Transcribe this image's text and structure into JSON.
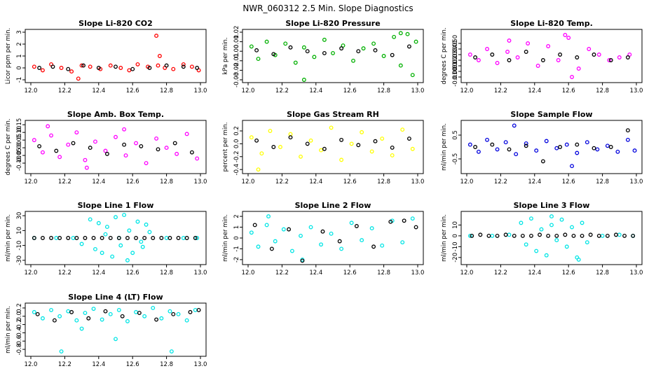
{
  "figure": {
    "title": "NWR_060312  2.5 Min. Slope Diagnostics"
  },
  "chart_data": [
    {
      "type": "scatter",
      "title": "Slope Li-820 CO2",
      "xlabel": "",
      "ylabel": "Licor ppm per min.",
      "xlim": [
        12.0,
        13.0
      ],
      "ylim": [
        -1.0,
        3.0
      ],
      "xticks": [
        "12.0",
        "12.2",
        "12.4",
        "12.6",
        "12.8",
        "13.0"
      ],
      "yticks": [
        "-1",
        "0",
        "1",
        "2",
        "3"
      ],
      "point_color": "#ff0000",
      "highlight_color": "#000000",
      "series": [
        {
          "x": [
            12.02,
            12.07,
            12.12,
            12.18,
            12.24,
            12.3,
            12.35,
            12.41,
            12.47,
            12.53,
            12.58,
            12.63,
            12.69,
            12.75,
            12.79,
            12.84,
            12.9,
            12.95,
            12.99,
            12.28,
            12.74,
            12.76
          ],
          "y": [
            0.1,
            -0.2,
            0.3,
            0.0,
            -0.3,
            0.2,
            0.1,
            -0.1,
            0.2,
            0.0,
            -0.2,
            0.3,
            0.1,
            0.2,
            0.0,
            -0.1,
            0.3,
            0.1,
            -0.2,
            -0.9,
            2.7,
            1.0
          ]
        },
        {
          "x": [
            12.05,
            12.13,
            12.22,
            12.31,
            12.4,
            12.5,
            12.6,
            12.7,
            12.8,
            12.9,
            12.98
          ],
          "y": [
            0.0,
            0.1,
            -0.1,
            0.2,
            0.0,
            0.1,
            -0.1,
            0.0,
            0.2,
            0.1,
            0.0
          ]
        }
      ]
    },
    {
      "type": "scatter",
      "title": "Slope Li-820 Pressure",
      "xlabel": "",
      "ylabel": "kPa per min.",
      "xlim": [
        12.0,
        13.0
      ],
      "ylim": [
        -0.03,
        0.02
      ],
      "xticks": [
        "12.0",
        "12.2",
        "12.4",
        "12.6",
        "12.8",
        "13.0"
      ],
      "yticks": [
        "-0.03",
        "-0.02",
        "-0.01",
        "0.00",
        "0.01",
        "0.02"
      ],
      "point_color": "#00b000",
      "highlight_color": "#000000",
      "series": [
        {
          "x": [
            12.02,
            12.06,
            12.11,
            12.16,
            12.22,
            12.28,
            12.33,
            12.39,
            12.45,
            12.5,
            12.56,
            12.62,
            12.68,
            12.74,
            12.8,
            12.86,
            12.9,
            12.94,
            12.97,
            12.99,
            12.33,
            12.9
          ],
          "y": [
            0.005,
            -0.008,
            0.01,
            -0.004,
            0.008,
            -0.012,
            0.004,
            -0.006,
            0.012,
            -0.002,
            0.006,
            -0.01,
            0.003,
            0.008,
            -0.005,
            0.015,
            -0.015,
            0.018,
            -0.025,
            0.01,
            -0.03,
            0.019
          ]
        },
        {
          "x": [
            12.05,
            12.15,
            12.25,
            12.35,
            12.45,
            12.55,
            12.65,
            12.75,
            12.85,
            12.95
          ],
          "y": [
            0.001,
            -0.003,
            0.004,
            0.0,
            -0.002,
            0.003,
            0.0,
            0.001,
            -0.004,
            0.005
          ]
        }
      ]
    },
    {
      "type": "scatter",
      "title": "Slope Li-820 Temp.",
      "xlabel": "",
      "ylabel": "degrees C per min.",
      "xlim": [
        12.0,
        13.0
      ],
      "ylim": [
        -0.015,
        0.07
      ],
      "xticks": [
        "12.0",
        "12.2",
        "12.4",
        "12.6",
        "12.8",
        "13.0"
      ],
      "yticks": [
        "-0.010",
        "0.000",
        "0.010",
        "0.020",
        "0.030",
        "0.040",
        "0.050"
      ],
      "point_color": "#ff00ff",
      "highlight_color": "#000000",
      "series": [
        {
          "x": [
            12.02,
            12.07,
            12.12,
            12.18,
            12.24,
            12.3,
            12.36,
            12.42,
            12.48,
            12.54,
            12.6,
            12.66,
            12.72,
            12.78,
            12.84,
            12.9,
            12.96,
            12.62,
            12.25,
            12.58
          ],
          "y": [
            0.03,
            0.02,
            0.04,
            0.015,
            0.035,
            0.025,
            0.05,
            0.01,
            0.045,
            0.02,
            0.06,
            0.005,
            0.04,
            0.03,
            0.02,
            0.025,
            0.03,
            -0.01,
            0.055,
            0.065
          ]
        },
        {
          "x": [
            12.05,
            12.15,
            12.25,
            12.35,
            12.45,
            12.55,
            12.65,
            12.75,
            12.85,
            12.95
          ],
          "y": [
            0.025,
            0.03,
            0.02,
            0.035,
            0.02,
            0.03,
            0.025,
            0.03,
            0.02,
            0.025
          ]
        }
      ]
    },
    {
      "type": "scatter",
      "title": "Slope Amb. Box Temp.",
      "xlabel": "",
      "ylabel": "degrees C per min.",
      "xlim": [
        12.0,
        13.0
      ],
      "ylim": [
        -0.15,
        0.16
      ],
      "xticks": [
        "12.0",
        "12.2",
        "12.4",
        "12.6",
        "12.8",
        "13.0"
      ],
      "yticks": [
        "-0.10",
        "-0.05",
        "0.00",
        "0.05",
        "0.10",
        "0.15"
      ],
      "point_color": "#ff00ff",
      "highlight_color": "#000000",
      "series": [
        {
          "x": [
            12.02,
            12.07,
            12.12,
            12.17,
            12.22,
            12.27,
            12.32,
            12.38,
            12.44,
            12.5,
            12.56,
            12.62,
            12.68,
            12.74,
            12.8,
            12.86,
            12.92,
            12.98,
            12.1,
            12.33,
            12.55
          ],
          "y": [
            0.05,
            -0.03,
            0.08,
            -0.06,
            0.02,
            0.1,
            -0.08,
            0.04,
            -0.02,
            0.07,
            -0.05,
            0.03,
            -0.1,
            0.06,
            0.0,
            -0.04,
            0.09,
            -0.07,
            0.14,
            -0.13,
            0.12
          ]
        },
        {
          "x": [
            12.05,
            12.15,
            12.25,
            12.35,
            12.45,
            12.55,
            12.65,
            12.75,
            12.85,
            12.95
          ],
          "y": [
            0.01,
            -0.02,
            0.03,
            0.0,
            -0.04,
            0.02,
            0.01,
            -0.01,
            0.03,
            -0.03
          ]
        }
      ]
    },
    {
      "type": "scatter",
      "title": "Slope Gas Stream RH",
      "xlabel": "",
      "ylabel": "percent per min.",
      "xlim": [
        12.0,
        13.0
      ],
      "ylim": [
        -0.42,
        0.32
      ],
      "xticks": [
        "12.0",
        "12.2",
        "12.4",
        "12.6",
        "12.8",
        "13.0"
      ],
      "yticks": [
        "-0.4",
        "-0.2",
        "0.0",
        "0.2"
      ],
      "point_color": "#ffff00",
      "highlight_color": "#000000",
      "series": [
        {
          "x": [
            12.02,
            12.08,
            12.13,
            12.19,
            12.25,
            12.31,
            12.37,
            12.43,
            12.49,
            12.55,
            12.61,
            12.67,
            12.73,
            12.79,
            12.85,
            12.91,
            12.97,
            12.06
          ],
          "y": [
            0.1,
            -0.15,
            0.2,
            -0.05,
            0.15,
            -0.2,
            0.05,
            -0.1,
            0.25,
            -0.25,
            0.0,
            0.18,
            -0.12,
            0.08,
            -0.18,
            0.22,
            -0.08,
            -0.4
          ]
        },
        {
          "x": [
            12.05,
            12.15,
            12.25,
            12.35,
            12.45,
            12.55,
            12.65,
            12.75,
            12.85,
            12.95
          ],
          "y": [
            0.05,
            -0.05,
            0.1,
            0.0,
            -0.08,
            0.06,
            -0.02,
            0.04,
            -0.06,
            0.08
          ]
        }
      ]
    },
    {
      "type": "scatter",
      "title": "Slope Sample Flow",
      "xlabel": "",
      "ylabel": "ml/min per min.",
      "xlim": [
        12.0,
        13.0
      ],
      "ylim": [
        -1.0,
        1.0
      ],
      "xticks": [
        "12.0",
        "12.2",
        "12.4",
        "12.6",
        "12.8",
        "13.0"
      ],
      "yticks": [
        "-0.5",
        "0.5"
      ],
      "point_color": "#0000dd",
      "highlight_color": "#000000",
      "series": [
        {
          "x": [
            12.02,
            12.07,
            12.12,
            12.18,
            12.23,
            12.29,
            12.35,
            12.41,
            12.47,
            12.53,
            12.59,
            12.65,
            12.71,
            12.77,
            12.83,
            12.89,
            12.95,
            12.99,
            12.28,
            12.62
          ],
          "y": [
            0.1,
            -0.2,
            0.3,
            -0.1,
            0.2,
            -0.3,
            0.15,
            -0.15,
            0.25,
            -0.05,
            0.1,
            -0.25,
            0.2,
            -0.1,
            0.05,
            -0.2,
            0.3,
            -0.15,
            0.9,
            -0.8
          ]
        },
        {
          "x": [
            12.05,
            12.15,
            12.25,
            12.35,
            12.45,
            12.55,
            12.65,
            12.75,
            12.85,
            12.95
          ],
          "y": [
            0.0,
            0.1,
            -0.1,
            0.05,
            -0.6,
            0.0,
            0.1,
            -0.05,
            0.0,
            0.7
          ]
        }
      ]
    },
    {
      "type": "scatter",
      "title": "Slope Line 1 Flow",
      "xlabel": "",
      "ylabel": "ml/min per min.",
      "xlim": [
        12.0,
        13.0
      ],
      "ylim": [
        -32,
        32
      ],
      "xticks": [
        "12.0",
        "12.2",
        "12.4",
        "12.6",
        "12.8",
        "13.0"
      ],
      "yticks": [
        "-30",
        "-10",
        "10",
        "30"
      ],
      "point_color": "#00e5e5",
      "highlight_color": "#000000",
      "series": [
        {
          "x": [
            12.35,
            12.38,
            12.4,
            12.42,
            12.45,
            12.48,
            12.5,
            12.53,
            12.55,
            12.58,
            12.6,
            12.63,
            12.65,
            12.68,
            12.7,
            12.3,
            12.57,
            12.44,
            12.66,
            12.02,
            12.15,
            12.25,
            12.52,
            12.8,
            12.9,
            12.98
          ],
          "y": [
            25,
            -15,
            20,
            -20,
            15,
            -25,
            28,
            -10,
            31,
            10,
            -20,
            22,
            -5,
            18,
            8,
            -8,
            -30,
            5,
            -12,
            0,
            0,
            0,
            0,
            0,
            0,
            0
          ]
        },
        {
          "x": [
            12.02,
            12.07,
            12.12,
            12.17,
            12.22,
            12.27,
            12.32,
            12.37,
            12.42,
            12.47,
            12.52,
            12.57,
            12.62,
            12.67,
            12.72,
            12.77,
            12.82,
            12.87,
            12.92,
            12.97
          ],
          "y": [
            0,
            0,
            0,
            0,
            0,
            0,
            0,
            0,
            0,
            0,
            0,
            0,
            0,
            0,
            0,
            0,
            0,
            0,
            0,
            0
          ]
        }
      ]
    },
    {
      "type": "scatter",
      "title": "Slope Line 2 Flow",
      "xlabel": "",
      "ylabel": "ml/min per min.",
      "xlim": [
        12.0,
        13.0
      ],
      "ylim": [
        -2.2,
        2.2
      ],
      "xticks": [
        "12.0",
        "12.2",
        "12.4",
        "12.6",
        "12.8",
        "13.0"
      ],
      "yticks": [
        "-2",
        "-1",
        "0",
        "1",
        "2"
      ],
      "point_color": "#00e5e5",
      "highlight_color": "#000000",
      "series": [
        {
          "x": [
            12.02,
            12.06,
            12.11,
            12.16,
            12.21,
            12.26,
            12.31,
            12.37,
            12.43,
            12.49,
            12.55,
            12.61,
            12.67,
            12.73,
            12.79,
            12.85,
            12.91,
            12.97,
            12.12,
            12.32
          ],
          "y": [
            0.5,
            -0.8,
            1.2,
            -0.3,
            0.8,
            -1.2,
            0.2,
            1.0,
            -0.6,
            0.4,
            -1.0,
            1.4,
            -0.2,
            0.9,
            -0.7,
            1.6,
            -0.4,
            1.8,
            2.0,
            -2.0
          ]
        },
        {
          "x": [
            12.04,
            12.14,
            12.24,
            12.32,
            12.44,
            12.54,
            12.64,
            12.74,
            12.84,
            12.92,
            12.99
          ],
          "y": [
            1.2,
            -1.0,
            0.8,
            -2.1,
            0.6,
            -0.3,
            1.1,
            -0.8,
            1.5,
            1.6,
            1.0
          ]
        }
      ]
    },
    {
      "type": "scatter",
      "title": "Slope Line 3 Flow",
      "xlabel": "",
      "ylabel": "ml/min per min.",
      "xlim": [
        12.0,
        13.0
      ],
      "ylim": [
        -24,
        20
      ],
      "xticks": [
        "12.0",
        "12.2",
        "12.4",
        "12.6",
        "12.8",
        "13.0"
      ],
      "yticks": [
        "-20",
        "-10",
        "0",
        "10"
      ],
      "point_color": "#00e5e5",
      "highlight_color": "#000000",
      "series": [
        {
          "x": [
            12.32,
            12.35,
            12.38,
            12.41,
            12.44,
            12.47,
            12.5,
            12.53,
            12.56,
            12.59,
            12.62,
            12.65,
            12.68,
            12.71,
            12.02,
            12.15,
            12.25,
            12.8,
            12.9,
            12.98,
            12.5,
            12.66
          ],
          "y": [
            12,
            -8,
            16,
            -14,
            6,
            -18,
            10,
            -4,
            15,
            -10,
            8,
            -20,
            12,
            -6,
            0,
            0,
            1,
            0,
            1,
            0,
            18,
            -22
          ]
        },
        {
          "x": [
            12.03,
            12.08,
            12.13,
            12.18,
            12.23,
            12.28,
            12.33,
            12.38,
            12.43,
            12.48,
            12.53,
            12.58,
            12.63,
            12.68,
            12.73,
            12.78,
            12.83,
            12.88,
            12.93,
            12.98
          ],
          "y": [
            0,
            1,
            0,
            0,
            1,
            0,
            0,
            0,
            1,
            0,
            0,
            1,
            0,
            0,
            1,
            0,
            0,
            1,
            0,
            0
          ]
        }
      ]
    },
    {
      "type": "scatter",
      "title": "Slope Line 4 (LT) Flow",
      "xlabel": "",
      "ylabel": "ml/min per min.",
      "xlim": [
        12.0,
        13.0
      ],
      "ylim": [
        -0.9,
        0.25
      ],
      "xticks": [
        "12.0",
        "12.2",
        "12.4",
        "12.6",
        "12.8",
        "13.0"
      ],
      "yticks": [
        "-0.8",
        "-0.6",
        "-0.4",
        "-0.2",
        "0.0",
        "0.2"
      ],
      "point_color": "#00e5e5",
      "highlight_color": "#000000",
      "series": [
        {
          "x": [
            12.02,
            12.07,
            12.12,
            12.17,
            12.22,
            12.27,
            12.32,
            12.37,
            12.42,
            12.47,
            12.52,
            12.57,
            12.62,
            12.67,
            12.72,
            12.77,
            12.82,
            12.87,
            12.92,
            12.97,
            12.18,
            12.5,
            12.83,
            12.3
          ],
          "y": [
            0.1,
            -0.05,
            0.15,
            0.0,
            0.12,
            -0.1,
            0.08,
            0.18,
            -0.08,
            0.05,
            0.15,
            -0.12,
            0.1,
            0.0,
            0.2,
            -0.05,
            0.12,
            0.05,
            -0.1,
            0.15,
            -0.85,
            -0.55,
            -0.85,
            -0.3
          ]
        },
        {
          "x": [
            12.04,
            12.14,
            12.24,
            12.34,
            12.44,
            12.54,
            12.64,
            12.74,
            12.84,
            12.94,
            12.99
          ],
          "y": [
            0.05,
            -0.1,
            0.1,
            -0.05,
            0.12,
            0.0,
            0.08,
            -0.08,
            0.05,
            0.1,
            0.15
          ]
        }
      ]
    }
  ]
}
